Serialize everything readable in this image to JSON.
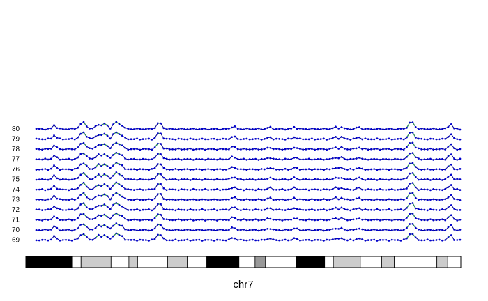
{
  "chart_data": {
    "type": "line",
    "chromosome_label": "chr7",
    "row_labels": [
      "80",
      "79",
      "78",
      "77",
      "76",
      "75",
      "74",
      "73",
      "72",
      "71",
      "70",
      "69"
    ],
    "colors": {
      "point": "#0000cc",
      "line": "#00008b",
      "peak_line": "#2e8b57",
      "band_black": "#000000",
      "band_light": "#cccccc",
      "band_mid": "#999999",
      "band_white": "#ffffff",
      "text": "#000000"
    },
    "x_range": [
      0,
      100
    ],
    "n_points": 144,
    "baseline": 0.2,
    "peaks": [
      {
        "x": 4.3,
        "h": 0.6,
        "w": 0.6
      },
      {
        "x": 11.0,
        "h": 1.0,
        "w": 1.0
      },
      {
        "x": 14.7,
        "h": 0.7,
        "w": 0.9
      },
      {
        "x": 16.3,
        "h": 0.8,
        "w": 0.7
      },
      {
        "x": 18.7,
        "h": 1.0,
        "w": 0.8
      },
      {
        "x": 20.0,
        "h": 0.6,
        "w": 0.8
      },
      {
        "x": 29.0,
        "h": 1.0,
        "w": 0.8
      },
      {
        "x": 46.5,
        "h": 0.4,
        "w": 0.7
      },
      {
        "x": 55.0,
        "h": 0.3,
        "w": 0.6
      },
      {
        "x": 61.0,
        "h": 0.3,
        "w": 0.6
      },
      {
        "x": 70.5,
        "h": 0.3,
        "w": 0.6
      },
      {
        "x": 72.0,
        "h": 0.3,
        "w": 0.6
      },
      {
        "x": 76.0,
        "h": 0.3,
        "w": 0.6
      },
      {
        "x": 88.5,
        "h": 1.1,
        "w": 0.9
      },
      {
        "x": 97.7,
        "h": 0.8,
        "w": 0.6
      }
    ],
    "bands": [
      {
        "start": 0,
        "end": 10.6,
        "stain": "black"
      },
      {
        "start": 10.6,
        "end": 12.7,
        "stain": "white"
      },
      {
        "start": 12.7,
        "end": 19.6,
        "stain": "light"
      },
      {
        "start": 19.6,
        "end": 23.7,
        "stain": "white"
      },
      {
        "start": 23.7,
        "end": 25.7,
        "stain": "light"
      },
      {
        "start": 25.7,
        "end": 32.6,
        "stain": "white"
      },
      {
        "start": 32.6,
        "end": 37.1,
        "stain": "light"
      },
      {
        "start": 37.1,
        "end": 41.6,
        "stain": "white"
      },
      {
        "start": 41.6,
        "end": 49.0,
        "stain": "black"
      },
      {
        "start": 49.0,
        "end": 52.7,
        "stain": "white"
      },
      {
        "start": 52.7,
        "end": 55.1,
        "stain": "mid"
      },
      {
        "start": 55.1,
        "end": 62.1,
        "stain": "white"
      },
      {
        "start": 62.1,
        "end": 68.7,
        "stain": "black"
      },
      {
        "start": 68.7,
        "end": 70.7,
        "stain": "white"
      },
      {
        "start": 70.7,
        "end": 76.9,
        "stain": "light"
      },
      {
        "start": 76.9,
        "end": 81.8,
        "stain": "white"
      },
      {
        "start": 81.8,
        "end": 84.7,
        "stain": "light"
      },
      {
        "start": 84.7,
        "end": 94.5,
        "stain": "white"
      },
      {
        "start": 94.5,
        "end": 97.0,
        "stain": "light"
      },
      {
        "start": 97.0,
        "end": 100,
        "stain": "white"
      }
    ]
  }
}
